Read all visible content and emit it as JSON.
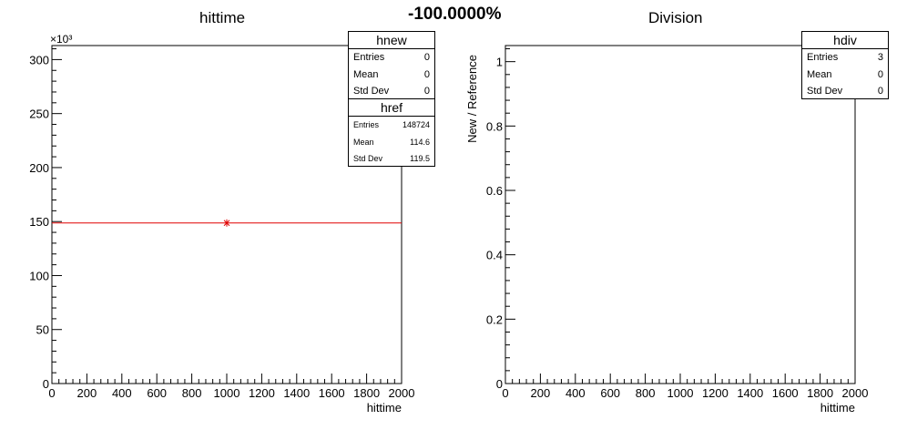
{
  "page": {
    "main_title": "-100.0000%"
  },
  "colors": {
    "reference_line": "#e00000",
    "axis": "#000000",
    "background": "#ffffff"
  },
  "stats": {
    "hnew": {
      "title": "hnew",
      "rows": [
        {
          "label": "Entries",
          "value": "0"
        },
        {
          "label": "Mean",
          "value": "0"
        },
        {
          "label": "Std Dev",
          "value": "0"
        }
      ]
    },
    "href": {
      "title": "href",
      "rows": [
        {
          "label": "Entries",
          "value": "148724"
        },
        {
          "label": "Mean",
          "value": "114.6"
        },
        {
          "label": "Std Dev",
          "value": "119.5"
        }
      ]
    },
    "hdiv": {
      "title": "hdiv",
      "rows": [
        {
          "label": "Entries",
          "value": "3"
        },
        {
          "label": "Mean",
          "value": "0"
        },
        {
          "label": "Std Dev",
          "value": "0"
        }
      ]
    }
  },
  "chart_data": [
    {
      "type": "line",
      "title": "hittime",
      "xlabel": "hittime",
      "ylabel": "",
      "y_multiplier_label": "×10³",
      "xlim": [
        0,
        2000
      ],
      "ylim": [
        0,
        313000
      ],
      "x_ticks": [
        0,
        200,
        400,
        600,
        800,
        1000,
        1200,
        1400,
        1600,
        1800,
        2000
      ],
      "x_tick_labels": [
        "0",
        "200",
        "400",
        "600",
        "800",
        "1000",
        "1200",
        "1400",
        "1600",
        "1800",
        "2000"
      ],
      "y_ticks": [
        0,
        50000,
        100000,
        150000,
        200000,
        250000,
        300000
      ],
      "y_tick_labels": [
        "0",
        "50",
        "100",
        "150",
        "200",
        "250",
        "300"
      ],
      "grid": false,
      "series": [
        {
          "name": "href",
          "bins": [
            {
              "x_low": 0,
              "x_high": 2000,
              "y": 148724,
              "x_center": 1000
            }
          ]
        },
        {
          "name": "hnew",
          "bins": []
        }
      ]
    },
    {
      "type": "line",
      "title": "Division",
      "xlabel": "hittime",
      "ylabel": "New / Reference",
      "xlim": [
        0,
        2000
      ],
      "ylim": [
        0,
        1.05
      ],
      "x_ticks": [
        0,
        200,
        400,
        600,
        800,
        1000,
        1200,
        1400,
        1600,
        1800,
        2000
      ],
      "x_tick_labels": [
        "0",
        "200",
        "400",
        "600",
        "800",
        "1000",
        "1200",
        "1400",
        "1600",
        "1800",
        "2000"
      ],
      "y_ticks": [
        0,
        0.2,
        0.4,
        0.6,
        0.8,
        1
      ],
      "y_tick_labels": [
        "0",
        "0.2",
        "0.4",
        "0.6",
        "0.8",
        "1"
      ],
      "grid": false,
      "series": [
        {
          "name": "hdiv",
          "bins": []
        }
      ]
    }
  ]
}
